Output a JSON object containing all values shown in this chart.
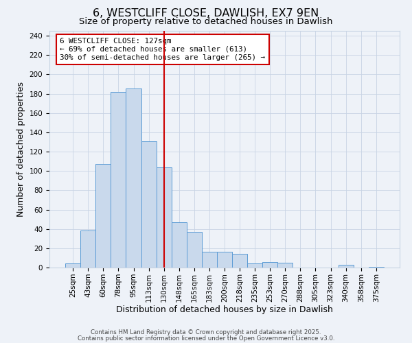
{
  "title": "6, WESTCLIFF CLOSE, DAWLISH, EX7 9EN",
  "subtitle": "Size of property relative to detached houses in Dawlish",
  "xlabel": "Distribution of detached houses by size in Dawlish",
  "ylabel": "Number of detached properties",
  "bar_labels": [
    "25sqm",
    "43sqm",
    "60sqm",
    "78sqm",
    "95sqm",
    "113sqm",
    "130sqm",
    "148sqm",
    "165sqm",
    "183sqm",
    "200sqm",
    "218sqm",
    "235sqm",
    "253sqm",
    "270sqm",
    "288sqm",
    "305sqm",
    "323sqm",
    "340sqm",
    "358sqm",
    "375sqm"
  ],
  "bar_values": [
    4,
    38,
    107,
    182,
    185,
    131,
    104,
    47,
    37,
    16,
    16,
    14,
    4,
    6,
    5,
    0,
    0,
    0,
    3,
    0,
    1
  ],
  "bar_color": "#c9d9ec",
  "bar_edge_color": "#5b9bd5",
  "ylim": [
    0,
    245
  ],
  "yticks": [
    0,
    20,
    40,
    60,
    80,
    100,
    120,
    140,
    160,
    180,
    200,
    220,
    240
  ],
  "vline_x": 6,
  "vline_color": "#cc0000",
  "annotation_text": "6 WESTCLIFF CLOSE: 127sqm\n← 69% of detached houses are smaller (613)\n30% of semi-detached houses are larger (265) →",
  "annotation_box_color": "#ffffff",
  "annotation_box_edge_color": "#cc0000",
  "footer1": "Contains HM Land Registry data © Crown copyright and database right 2025.",
  "footer2": "Contains public sector information licensed under the Open Government Licence v3.0.",
  "background_color": "#eef2f8",
  "grid_color": "#c8d4e4",
  "title_fontsize": 11.5,
  "subtitle_fontsize": 9.5,
  "axis_label_fontsize": 9,
  "tick_fontsize": 7.5,
  "footer_fontsize": 6.2
}
